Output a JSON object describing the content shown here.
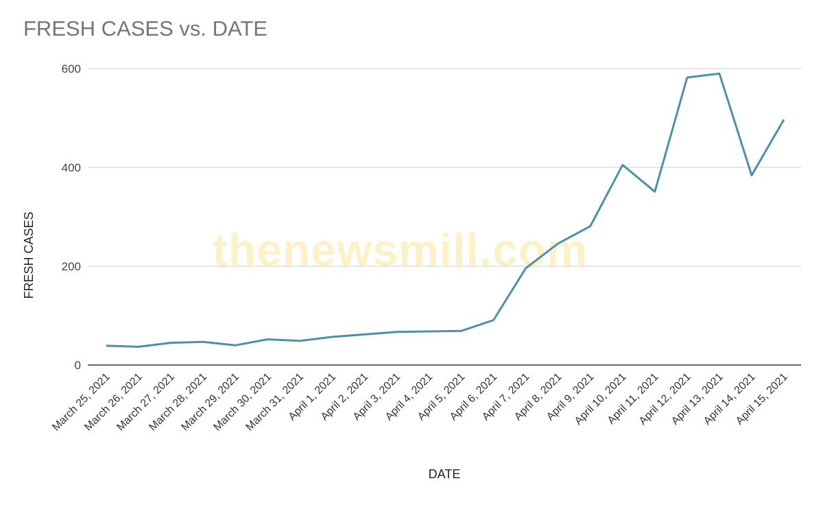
{
  "watermark_text": "thenewsmill.com",
  "chart_data": {
    "type": "line",
    "title": "FRESH CASES vs. DATE",
    "xlabel": "DATE",
    "ylabel": "FRESH CASES",
    "ylim": [
      0,
      600
    ],
    "yticks": [
      0,
      200,
      400,
      600
    ],
    "grid": true,
    "categories": [
      "March 25, 2021",
      "March 26, 2021",
      "March 27, 2021",
      "March 28, 2021",
      "March 29, 2021",
      "March 30, 2021",
      "March 31, 2021",
      "April 1, 2021",
      "April 2, 2021",
      "April 3, 2021",
      "April 4, 2021",
      "April 5, 2021",
      "April 6, 2021",
      "April 7, 2021",
      "April 8, 2021",
      "April 9, 2021",
      "April 10, 2021",
      "April 11, 2021",
      "April 12, 2021",
      "April 13, 2021",
      "April 14, 2021",
      "April 15, 2021"
    ],
    "values": [
      39,
      37,
      45,
      47,
      40,
      52,
      49,
      57,
      62,
      67,
      68,
      69,
      91,
      196,
      246,
      281,
      405,
      351,
      582,
      590,
      384,
      497
    ],
    "line_color": "#4e8fa8"
  }
}
